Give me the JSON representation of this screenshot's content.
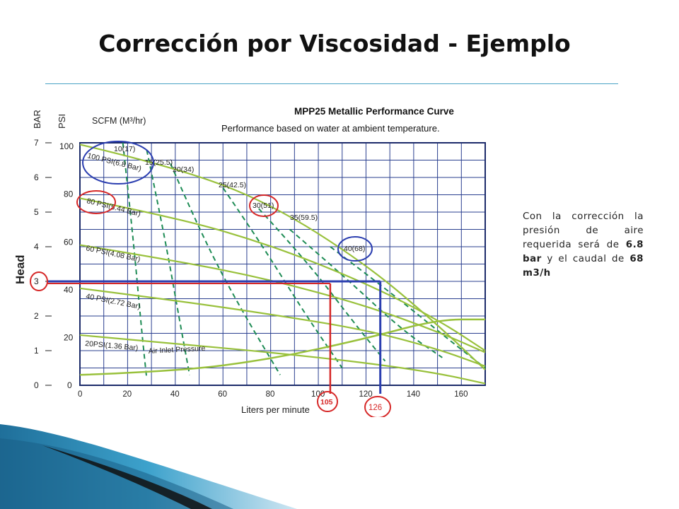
{
  "slide": {
    "title": "Corrección por Viscosidad - Ejemplo",
    "note_parts": {
      "prefix": "Con la corrección la presión de aire requerida será de ",
      "pressure": "6.8 bar",
      "middle": " y el caudal de ",
      "flow": "68 m3/h"
    },
    "accent_color": "#4aa3c6"
  },
  "chart_data": {
    "type": "line",
    "title": "MPP25 Metallic Performance Curve",
    "subtitle": "Performance based on water at ambient temperature.",
    "xlabel": "Liters per minute",
    "ylabel": "Head",
    "ylabel_bar": "BAR",
    "ylabel_psi": "PSI",
    "scfm_label": "SCFM (M³/hr)",
    "xlim": [
      0,
      170
    ],
    "ylim_bar": [
      0,
      7
    ],
    "x_ticks": [
      "0",
      "20",
      "40",
      "60",
      "80",
      "100",
      "120",
      "140",
      "160"
    ],
    "bar_ticks": [
      "0",
      "1",
      "2",
      "3",
      "4",
      "5",
      "6",
      "7"
    ],
    "psi_ticks": [
      "0",
      "20",
      "40",
      "60",
      "80",
      "100"
    ],
    "grid": true,
    "colors": {
      "pressure_curve": "#99c13c",
      "air_curve": "#1e8c55",
      "grid": "#2a3f8f",
      "marker_red": "#d62828",
      "marker_blue": "#2b3eb0"
    },
    "pressure_curves": [
      {
        "name": "100 PSI(6.8 Bar)",
        "x": [
          0,
          40,
          80,
          120,
          150,
          170
        ],
        "y": [
          6.95,
          6.3,
          5.25,
          3.5,
          1.75,
          0.45
        ]
      },
      {
        "name": "80 PSI(5.44 Bar)",
        "x": [
          0,
          40,
          80,
          120,
          150,
          170
        ],
        "y": [
          5.4,
          4.85,
          4.05,
          2.95,
          1.9,
          1.0
        ]
      },
      {
        "name": "60 PSI(4.08 Bar)",
        "x": [
          0,
          40,
          80,
          120,
          150,
          170
        ],
        "y": [
          4.05,
          3.6,
          3.05,
          2.3,
          1.55,
          0.95
        ]
      },
      {
        "name": "40 PSI(2.72 Bar)",
        "x": [
          0,
          40,
          80,
          120,
          150,
          170
        ],
        "y": [
          2.8,
          2.45,
          2.05,
          1.6,
          1.05,
          0.55
        ]
      },
      {
        "name": "20PSI(1.36 Bar)",
        "x": [
          0,
          40,
          80,
          120,
          150,
          170
        ],
        "y": [
          1.45,
          1.2,
          0.95,
          0.65,
          0.35,
          0.05
        ]
      }
    ],
    "air_curves": [
      {
        "name": "10(17)",
        "x": [
          18,
          22,
          26,
          28
        ],
        "y": [
          7.0,
          4.5,
          1.5,
          0.2
        ]
      },
      {
        "name": "15(25.5)",
        "x": [
          28,
          35,
          42,
          46
        ],
        "y": [
          6.8,
          4.5,
          1.8,
          0.3
        ]
      },
      {
        "name": "20(34)",
        "x": [
          38,
          50,
          65,
          84
        ],
        "y": [
          6.4,
          4.5,
          2.5,
          0.3
        ]
      },
      {
        "name": "25(42.5)",
        "x": [
          60,
          75,
          95,
          110
        ],
        "y": [
          5.7,
          4.2,
          2.0,
          0.5
        ]
      },
      {
        "name": "30(51)",
        "x": [
          75,
          95,
          115,
          128
        ],
        "y": [
          5.1,
          3.6,
          1.8,
          0.7
        ]
      },
      {
        "name": "35(59.5)",
        "x": [
          88,
          110,
          135,
          152
        ],
        "y": [
          4.5,
          3.2,
          1.6,
          0.8
        ]
      },
      {
        "name": "40(68)",
        "x": [
          105,
          130,
          155,
          170
        ],
        "y": [
          4.0,
          2.7,
          1.3,
          0.5
        ]
      }
    ],
    "air_consumption_curve": {
      "name": "Air Inlet Pressure",
      "x": [
        0,
        40,
        80,
        120,
        150,
        170
      ],
      "y": [
        0.3,
        0.4,
        0.75,
        1.35,
        1.9,
        1.9
      ]
    },
    "markers": {
      "head": {
        "value": 3,
        "label": "3"
      },
      "flow_a": {
        "value": 105,
        "label": "105"
      },
      "flow_b": {
        "value": 126,
        "label": "126"
      },
      "highlight_pressure": "100 PSI(6.8 Bar)",
      "highlight_air": "40(68)"
    }
  }
}
